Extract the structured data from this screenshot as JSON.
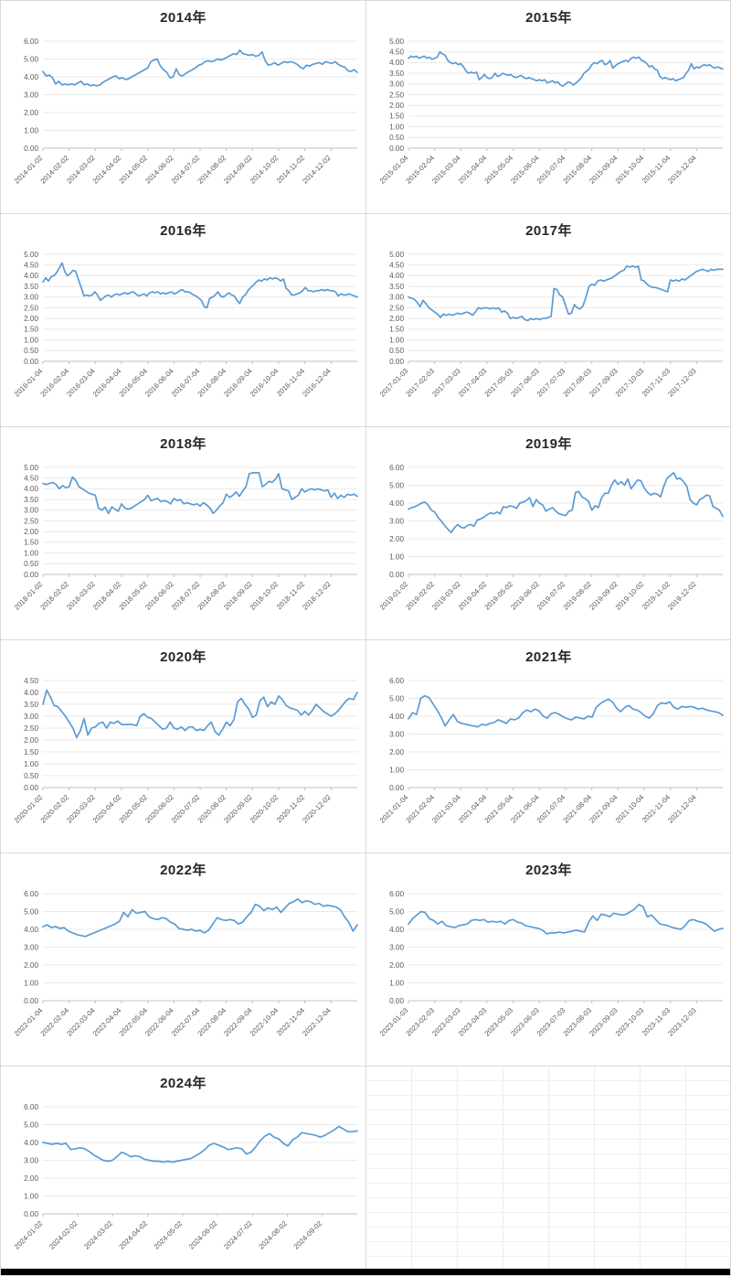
{
  "chart_style": {
    "line_color": "#5B9BD5",
    "grid_color": "#eaeaea",
    "axis_color": "#c0c0c0",
    "tick_label_color": "#595959",
    "title_color": "#262626"
  },
  "chart_data": [
    {
      "type": "line",
      "title": "2014年",
      "ylim": [
        0,
        6
      ],
      "ystep": 1.0,
      "legend": "none",
      "grid": "horizontal",
      "x_labels": [
        "2014-01-02",
        "2014-02-02",
        "2014-03-02",
        "2014-04-02",
        "2014-05-02",
        "2014-06-02",
        "2014-07-02",
        "2014-08-02",
        "2014-09-02",
        "2014-10-02",
        "2014-11-02",
        "2014-12-02"
      ],
      "values": [
        4.3,
        4.05,
        4.1,
        3.95,
        3.6,
        3.75,
        3.55,
        3.6,
        3.55,
        3.6,
        3.55,
        3.65,
        3.75,
        3.55,
        3.6,
        3.5,
        3.55,
        3.5,
        3.55,
        3.7,
        3.8,
        3.9,
        4.0,
        4.05,
        3.9,
        3.95,
        3.85,
        3.9,
        4.0,
        4.1,
        4.2,
        4.3,
        4.4,
        4.5,
        4.85,
        4.95,
        5.0,
        4.6,
        4.4,
        4.25,
        3.95,
        4.0,
        4.45,
        4.1,
        4.05,
        4.2,
        4.3,
        4.4,
        4.5,
        4.65,
        4.7,
        4.85,
        4.9,
        4.85,
        4.9,
        5.0,
        4.95,
        5.0,
        5.1,
        5.2,
        5.3,
        5.25,
        5.5,
        5.3,
        5.25,
        5.2,
        5.25,
        5.15,
        5.2,
        5.4,
        4.9,
        4.65,
        4.7,
        4.8,
        4.65,
        4.75,
        4.85,
        4.8,
        4.85,
        4.8,
        4.7,
        4.55,
        4.45,
        4.65,
        4.6,
        4.7,
        4.75,
        4.8,
        4.7,
        4.85,
        4.8,
        4.75,
        4.85,
        4.7,
        4.6,
        4.55,
        4.35,
        4.3,
        4.4,
        4.25
      ]
    },
    {
      "type": "line",
      "title": "2015年",
      "ylim": [
        0,
        5
      ],
      "ystep": 0.5,
      "legend": "none",
      "grid": "horizontal",
      "x_labels": [
        "2015-01-04",
        "2015-02-04",
        "2015-03-04",
        "2015-04-04",
        "2015-05-04",
        "2015-06-04",
        "2015-07-04",
        "2015-08-04",
        "2015-09-04",
        "2015-10-04",
        "2015-11-04",
        "2015-12-04"
      ],
      "values": [
        4.2,
        4.3,
        4.25,
        4.3,
        4.2,
        4.25,
        4.3,
        4.2,
        4.25,
        4.15,
        4.2,
        4.25,
        4.5,
        4.4,
        4.35,
        4.1,
        4.0,
        3.95,
        4.0,
        3.9,
        3.95,
        3.8,
        3.6,
        3.5,
        3.55,
        3.5,
        3.55,
        3.2,
        3.3,
        3.45,
        3.3,
        3.25,
        3.3,
        3.5,
        3.35,
        3.4,
        3.5,
        3.45,
        3.4,
        3.45,
        3.35,
        3.3,
        3.35,
        3.4,
        3.3,
        3.25,
        3.3,
        3.25,
        3.2,
        3.15,
        3.2,
        3.15,
        3.2,
        3.05,
        3.1,
        3.15,
        3.05,
        3.1,
        2.95,
        2.9,
        3.0,
        3.1,
        3.05,
        2.95,
        3.05,
        3.15,
        3.3,
        3.5,
        3.6,
        3.7,
        3.9,
        4.0,
        3.95,
        4.05,
        4.1,
        3.9,
        3.95,
        4.1,
        3.75,
        3.85,
        3.95,
        4.0,
        4.05,
        4.1,
        4.05,
        4.2,
        4.25,
        4.2,
        4.25,
        4.1,
        4.05,
        3.95,
        3.8,
        3.85,
        3.7,
        3.65,
        3.35,
        3.25,
        3.3,
        3.25,
        3.2,
        3.25,
        3.15,
        3.2,
        3.25,
        3.3,
        3.5,
        3.65,
        3.95,
        3.7,
        3.8,
        3.75,
        3.85,
        3.9,
        3.85,
        3.9,
        3.8,
        3.75,
        3.8,
        3.75,
        3.7
      ]
    },
    {
      "type": "line",
      "title": "2016年",
      "ylim": [
        0,
        5
      ],
      "ystep": 0.5,
      "legend": "none",
      "grid": "horizontal",
      "x_labels": [
        "2016-01-04",
        "2016-02-04",
        "2016-03-04",
        "2016-04-04",
        "2016-05-04",
        "2016-06-04",
        "2016-07-04",
        "2016-08-04",
        "2016-09-04",
        "2016-10-04",
        "2016-11-04",
        "2016-12-04"
      ],
      "values": [
        3.7,
        3.9,
        3.75,
        3.95,
        4.0,
        4.15,
        4.35,
        4.6,
        4.2,
        4.0,
        4.1,
        4.25,
        4.2,
        3.8,
        3.45,
        3.05,
        3.1,
        3.05,
        3.1,
        3.25,
        3.1,
        2.85,
        2.95,
        3.05,
        3.1,
        3.0,
        3.1,
        3.15,
        3.1,
        3.15,
        3.2,
        3.15,
        3.2,
        3.25,
        3.15,
        3.05,
        3.1,
        3.15,
        3.05,
        3.2,
        3.25,
        3.2,
        3.25,
        3.15,
        3.2,
        3.15,
        3.2,
        3.25,
        3.15,
        3.2,
        3.3,
        3.35,
        3.25,
        3.25,
        3.2,
        3.1,
        3.05,
        2.95,
        2.85,
        2.55,
        2.5,
        2.95,
        3.0,
        3.1,
        3.25,
        3.05,
        3.0,
        3.1,
        3.2,
        3.1,
        3.05,
        2.85,
        2.7,
        3.0,
        3.1,
        3.3,
        3.45,
        3.55,
        3.7,
        3.8,
        3.75,
        3.85,
        3.8,
        3.9,
        3.85,
        3.9,
        3.85,
        3.75,
        3.85,
        3.4,
        3.3,
        3.1,
        3.1,
        3.15,
        3.2,
        3.3,
        3.45,
        3.3,
        3.3,
        3.25,
        3.3,
        3.3,
        3.35,
        3.3,
        3.35,
        3.3,
        3.3,
        3.25,
        3.05,
        3.15,
        3.1,
        3.1,
        3.15,
        3.1,
        3.05,
        3.0
      ]
    },
    {
      "type": "line",
      "title": "2017年",
      "ylim": [
        0,
        5
      ],
      "ystep": 0.5,
      "legend": "none",
      "grid": "horizontal",
      "x_labels": [
        "2017-01-03",
        "2017-02-03",
        "2017-03-03",
        "2017-04-03",
        "2017-05-03",
        "2017-06-03",
        "2017-07-03",
        "2017-08-03",
        "2017-09-03",
        "2017-10-03",
        "2017-11-03",
        "2017-12-03"
      ],
      "values": [
        3.0,
        2.95,
        2.9,
        2.75,
        2.55,
        2.85,
        2.7,
        2.5,
        2.4,
        2.3,
        2.2,
        2.05,
        2.2,
        2.15,
        2.2,
        2.15,
        2.2,
        2.25,
        2.2,
        2.25,
        2.3,
        2.25,
        2.15,
        2.3,
        2.5,
        2.45,
        2.5,
        2.5,
        2.45,
        2.5,
        2.45,
        2.5,
        2.3,
        2.35,
        2.25,
        2.0,
        2.05,
        2.0,
        2.05,
        2.1,
        1.95,
        1.9,
        2.0,
        1.95,
        2.0,
        1.95,
        2.0,
        2.0,
        2.05,
        2.1,
        3.4,
        3.35,
        3.1,
        3.0,
        2.6,
        2.2,
        2.25,
        2.65,
        2.5,
        2.45,
        2.6,
        3.0,
        3.5,
        3.6,
        3.55,
        3.75,
        3.8,
        3.75,
        3.8,
        3.85,
        3.9,
        4.0,
        4.1,
        4.2,
        4.25,
        4.45,
        4.4,
        4.45,
        4.4,
        4.45,
        3.8,
        3.75,
        3.6,
        3.5,
        3.45,
        3.45,
        3.4,
        3.35,
        3.3,
        3.25,
        3.8,
        3.75,
        3.8,
        3.75,
        3.85,
        3.8,
        3.9,
        4.0,
        4.1,
        4.2,
        4.25,
        4.3,
        4.25,
        4.2,
        4.3,
        4.25,
        4.3,
        4.3,
        4.3
      ]
    },
    {
      "type": "line",
      "title": "2018年",
      "ylim": [
        0,
        5
      ],
      "ystep": 0.5,
      "legend": "none",
      "grid": "horizontal",
      "x_labels": [
        "2018-01-02",
        "2018-02-02",
        "2018-03-02",
        "2018-04-02",
        "2018-05-02",
        "2018-06-02",
        "2018-07-02",
        "2018-08-02",
        "2018-09-02",
        "2018-10-02",
        "2018-11-02",
        "2018-12-02"
      ],
      "values": [
        4.25,
        4.2,
        4.25,
        4.3,
        4.2,
        4.0,
        4.15,
        4.05,
        4.1,
        4.55,
        4.4,
        4.1,
        4.0,
        3.9,
        3.8,
        3.75,
        3.7,
        3.1,
        3.0,
        3.15,
        2.85,
        3.15,
        3.05,
        2.95,
        3.3,
        3.1,
        3.05,
        3.1,
        3.2,
        3.3,
        3.4,
        3.5,
        3.7,
        3.45,
        3.5,
        3.55,
        3.4,
        3.45,
        3.4,
        3.3,
        3.55,
        3.45,
        3.5,
        3.3,
        3.35,
        3.3,
        3.25,
        3.3,
        3.2,
        3.35,
        3.25,
        3.1,
        2.85,
        3.0,
        3.2,
        3.35,
        3.75,
        3.6,
        3.7,
        3.85,
        3.65,
        3.9,
        4.1,
        4.7,
        4.75,
        4.75,
        4.75,
        4.1,
        4.2,
        4.35,
        4.3,
        4.45,
        4.7,
        4.0,
        3.95,
        3.9,
        3.5,
        3.6,
        3.7,
        4.0,
        3.85,
        3.95,
        4.0,
        3.95,
        4.0,
        3.95,
        3.9,
        3.95,
        3.6,
        3.8,
        3.55,
        3.7,
        3.6,
        3.75,
        3.7,
        3.75,
        3.65
      ]
    },
    {
      "type": "line",
      "title": "2019年",
      "ylim": [
        0,
        6
      ],
      "ystep": 1.0,
      "legend": "none",
      "grid": "horizontal",
      "x_labels": [
        "2019-01-02",
        "2019-02-02",
        "2019-03-02",
        "2019-04-02",
        "2019-05-02",
        "2019-06-02",
        "2019-07-02",
        "2019-08-02",
        "2019-09-02",
        "2019-10-02",
        "2019-11-02",
        "2019-12-02"
      ],
      "values": [
        3.65,
        3.75,
        3.8,
        3.9,
        4.0,
        4.05,
        3.9,
        3.6,
        3.5,
        3.2,
        3.0,
        2.75,
        2.55,
        2.35,
        2.6,
        2.8,
        2.65,
        2.6,
        2.75,
        2.8,
        2.7,
        3.05,
        3.1,
        3.2,
        3.35,
        3.45,
        3.4,
        3.5,
        3.4,
        3.8,
        3.75,
        3.85,
        3.8,
        3.7,
        4.0,
        4.05,
        4.15,
        4.3,
        3.8,
        4.2,
        4.0,
        3.9,
        3.55,
        3.65,
        3.75,
        3.55,
        3.4,
        3.35,
        3.3,
        3.55,
        3.6,
        4.6,
        4.65,
        4.35,
        4.25,
        4.1,
        3.6,
        3.85,
        3.75,
        4.3,
        4.55,
        4.55,
        5.0,
        5.3,
        5.05,
        5.2,
        5.0,
        5.35,
        4.8,
        5.05,
        5.3,
        5.25,
        4.85,
        4.6,
        4.45,
        4.55,
        4.5,
        4.35,
        4.95,
        5.4,
        5.55,
        5.7,
        5.35,
        5.4,
        5.2,
        4.95,
        4.2,
        4.0,
        3.9,
        4.2,
        4.3,
        4.45,
        4.4,
        3.8,
        3.7,
        3.6,
        3.25
      ]
    },
    {
      "type": "line",
      "title": "2020年",
      "ylim": [
        0,
        4.5
      ],
      "ystep": 0.5,
      "legend": "none",
      "grid": "horizontal",
      "x_labels": [
        "2020-01-02",
        "2020-02-02",
        "2020-03-02",
        "2020-04-02",
        "2020-05-02",
        "2020-06-02",
        "2020-07-02",
        "2020-08-02",
        "2020-09-02",
        "2020-10-02",
        "2020-11-02",
        "2020-12-02"
      ],
      "values": [
        3.5,
        4.1,
        3.8,
        3.45,
        3.4,
        3.2,
        3.0,
        2.75,
        2.5,
        2.1,
        2.4,
        2.9,
        2.2,
        2.5,
        2.55,
        2.7,
        2.75,
        2.5,
        2.75,
        2.7,
        2.8,
        2.65,
        2.65,
        2.65,
        2.65,
        2.6,
        3.0,
        3.1,
        2.95,
        2.9,
        2.75,
        2.6,
        2.45,
        2.5,
        2.75,
        2.5,
        2.45,
        2.55,
        2.4,
        2.55,
        2.55,
        2.4,
        2.45,
        2.4,
        2.6,
        2.75,
        2.35,
        2.2,
        2.45,
        2.75,
        2.6,
        2.85,
        3.6,
        3.75,
        3.5,
        3.3,
        2.95,
        3.05,
        3.65,
        3.8,
        3.4,
        3.6,
        3.5,
        3.85,
        3.7,
        3.45,
        3.35,
        3.3,
        3.25,
        3.05,
        3.2,
        3.05,
        3.25,
        3.5,
        3.35,
        3.2,
        3.1,
        3.0,
        3.1,
        3.25,
        3.45,
        3.65,
        3.75,
        3.7,
        4.0
      ]
    },
    {
      "type": "line",
      "title": "2021年",
      "ylim": [
        0,
        6
      ],
      "ystep": 1.0,
      "legend": "none",
      "grid": "horizontal",
      "x_labels": [
        "2021-01-04",
        "2021-02-04",
        "2021-03-04",
        "2021-04-04",
        "2021-05-04",
        "2021-06-04",
        "2021-07-04",
        "2021-08-04",
        "2021-09-04",
        "2021-10-04",
        "2021-11-04",
        "2021-12-04"
      ],
      "values": [
        3.85,
        4.2,
        4.1,
        5.0,
        5.15,
        5.05,
        4.7,
        4.35,
        3.95,
        3.45,
        3.8,
        4.1,
        3.7,
        3.6,
        3.55,
        3.5,
        3.45,
        3.4,
        3.55,
        3.5,
        3.6,
        3.65,
        3.8,
        3.7,
        3.6,
        3.85,
        3.8,
        3.9,
        4.2,
        4.35,
        4.25,
        4.4,
        4.3,
        4.0,
        3.9,
        4.15,
        4.2,
        4.1,
        3.95,
        3.85,
        3.8,
        3.95,
        3.9,
        3.85,
        4.0,
        3.95,
        4.5,
        4.7,
        4.85,
        4.95,
        4.8,
        4.45,
        4.25,
        4.5,
        4.6,
        4.4,
        4.35,
        4.2,
        4.0,
        3.9,
        4.15,
        4.6,
        4.75,
        4.7,
        4.8,
        4.5,
        4.4,
        4.55,
        4.5,
        4.55,
        4.5,
        4.4,
        4.45,
        4.35,
        4.3,
        4.25,
        4.2,
        4.05
      ]
    },
    {
      "type": "line",
      "title": "2022年",
      "ylim": [
        0,
        6
      ],
      "ystep": 1.0,
      "legend": "none",
      "grid": "horizontal",
      "x_labels": [
        "2022-01-04",
        "2022-02-04",
        "2022-03-04",
        "2022-04-04",
        "2022-05-04",
        "2022-06-04",
        "2022-07-04",
        "2022-08-04",
        "2022-09-04",
        "2022-10-04",
        "2022-11-04",
        "2022-12-04"
      ],
      "values": [
        4.15,
        4.25,
        4.1,
        4.15,
        4.05,
        4.1,
        3.9,
        3.8,
        3.7,
        3.65,
        3.6,
        3.7,
        3.8,
        3.9,
        4.0,
        4.1,
        4.2,
        4.3,
        4.45,
        4.95,
        4.7,
        5.1,
        4.9,
        4.95,
        5.0,
        4.7,
        4.6,
        4.55,
        4.65,
        4.6,
        4.4,
        4.3,
        4.05,
        4.0,
        3.95,
        4.0,
        3.9,
        3.95,
        3.8,
        3.95,
        4.3,
        4.65,
        4.55,
        4.5,
        4.55,
        4.5,
        4.3,
        4.4,
        4.7,
        4.95,
        5.4,
        5.3,
        5.05,
        5.2,
        5.1,
        5.25,
        4.95,
        5.2,
        5.45,
        5.55,
        5.7,
        5.5,
        5.6,
        5.55,
        5.4,
        5.45,
        5.3,
        5.35,
        5.3,
        5.25,
        5.1,
        4.7,
        4.4,
        3.9,
        4.25
      ]
    },
    {
      "type": "line",
      "title": "2023年",
      "ylim": [
        0,
        6
      ],
      "ystep": 1.0,
      "legend": "none",
      "grid": "horizontal",
      "x_labels": [
        "2023-01-03",
        "2023-02-03",
        "2023-03-03",
        "2023-04-03",
        "2023-05-03",
        "2023-06-03",
        "2023-07-03",
        "2023-08-03",
        "2023-09-03",
        "2023-10-03",
        "2023-11-03",
        "2023-12-03"
      ],
      "values": [
        4.3,
        4.6,
        4.8,
        5.0,
        4.95,
        4.6,
        4.5,
        4.3,
        4.45,
        4.2,
        4.15,
        4.1,
        4.2,
        4.25,
        4.3,
        4.5,
        4.55,
        4.5,
        4.55,
        4.4,
        4.45,
        4.4,
        4.45,
        4.3,
        4.5,
        4.55,
        4.4,
        4.35,
        4.2,
        4.15,
        4.1,
        4.05,
        3.95,
        3.75,
        3.8,
        3.8,
        3.85,
        3.8,
        3.85,
        3.9,
        3.95,
        3.9,
        3.85,
        4.4,
        4.75,
        4.5,
        4.85,
        4.8,
        4.7,
        4.9,
        4.85,
        4.8,
        4.85,
        5.0,
        5.15,
        5.4,
        5.25,
        4.7,
        4.8,
        4.55,
        4.3,
        4.25,
        4.2,
        4.1,
        4.05,
        4.0,
        4.2,
        4.5,
        4.55,
        4.45,
        4.4,
        4.3,
        4.1,
        3.9,
        4.0,
        4.05
      ]
    },
    {
      "type": "line",
      "title": "2024年",
      "ylim": [
        0,
        6
      ],
      "ystep": 1.0,
      "legend": "none",
      "grid": "horizontal",
      "x_labels": [
        "2024-01-02",
        "2024-02-02",
        "2024-03-02",
        "2024-04-02",
        "2024-05-02",
        "2024-06-02",
        "2024-07-02",
        "2024-08-02",
        "2024-09-02"
      ],
      "values": [
        4.0,
        3.95,
        3.9,
        3.95,
        3.9,
        3.95,
        3.6,
        3.65,
        3.7,
        3.65,
        3.5,
        3.3,
        3.15,
        3.0,
        2.95,
        3.0,
        3.2,
        3.45,
        3.35,
        3.2,
        3.25,
        3.2,
        3.05,
        3.0,
        2.95,
        2.95,
        2.9,
        2.95,
        2.9,
        2.95,
        3.0,
        3.05,
        3.1,
        3.25,
        3.4,
        3.6,
        3.85,
        3.95,
        3.85,
        3.75,
        3.6,
        3.65,
        3.7,
        3.65,
        3.35,
        3.45,
        3.75,
        4.1,
        4.35,
        4.5,
        4.3,
        4.2,
        3.95,
        3.8,
        4.15,
        4.3,
        4.55,
        4.5,
        4.45,
        4.4,
        4.3,
        4.4,
        4.55,
        4.7,
        4.9,
        4.75,
        4.6,
        4.6,
        4.65
      ]
    }
  ],
  "empty_cell": {
    "description": "blank spreadsheet cells"
  }
}
